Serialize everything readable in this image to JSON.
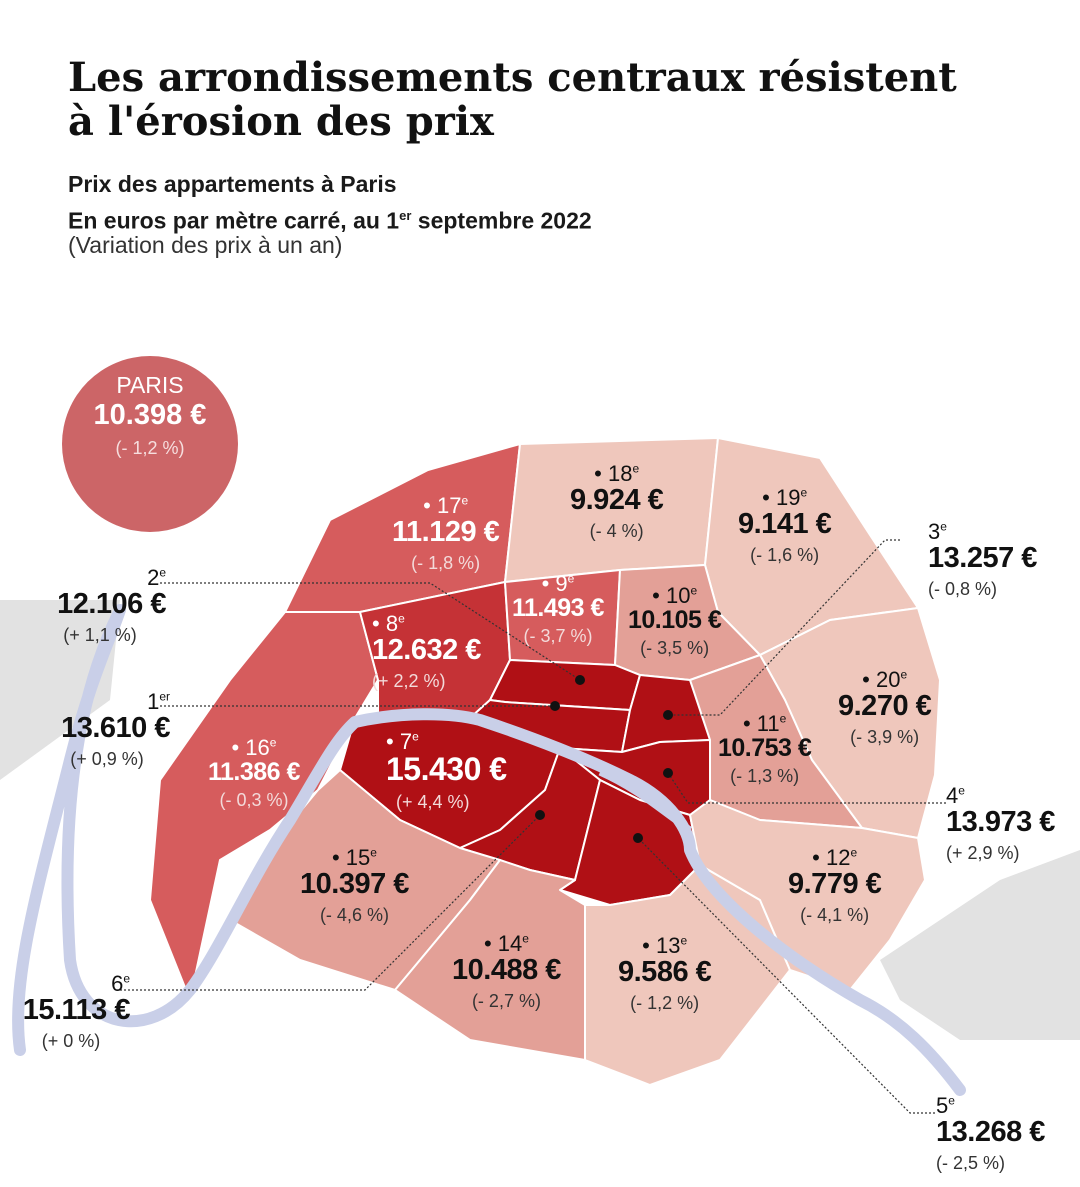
{
  "title_line1": "Les arrondissements centraux résistent",
  "title_line2": "à l'érosion des prix",
  "subtitle_line1": "Prix des appartements à Paris",
  "subtitle_line2_a": "En euros par mètre carré, au 1",
  "subtitle_line2_sup": "er",
  "subtitle_line2_b": " septembre 2022",
  "note": "(Variation des prix à un an)",
  "paris": {
    "name": "PARIS",
    "price": "10.398 €",
    "variation": "(- 1,2 %)"
  },
  "colors": {
    "very_high": "#b01015",
    "high": "#c53236",
    "mid": "#d65c5d",
    "low_mid": "#e3a097",
    "low": "#efc7bc",
    "seine": "#c9cfe8",
    "land_outside": "#e2e2e2"
  },
  "arrondissements": {
    "a1": {
      "num": "1",
      "sup": "er",
      "price": "13.610 €",
      "variation": "(+ 0,9 %)"
    },
    "a2": {
      "num": "2",
      "sup": "e",
      "price": "12.106 €",
      "variation": "(+ 1,1 %)"
    },
    "a3": {
      "num": "3",
      "sup": "e",
      "price": "13.257 €",
      "variation": "(- 0,8 %)"
    },
    "a4": {
      "num": "4",
      "sup": "e",
      "price": "13.973 €",
      "variation": "(+ 2,9 %)"
    },
    "a5": {
      "num": "5",
      "sup": "e",
      "price": "13.268 €",
      "variation": "(- 2,5 %)"
    },
    "a6": {
      "num": "6",
      "sup": "e",
      "price": "15.113 €",
      "variation": "(+ 0 %)"
    },
    "a7": {
      "num": "• 7",
      "sup": "e",
      "price": "15.430 €",
      "variation": "(+ 4,4 %)"
    },
    "a8": {
      "num": "• 8",
      "sup": "e",
      "price": "12.632 €",
      "variation": "(+ 2,2 %)"
    },
    "a9": {
      "num": "• 9",
      "sup": "e",
      "price": "11.493 €",
      "variation": "(- 3,7 %)"
    },
    "a10": {
      "num": "• 10",
      "sup": "e",
      "price": "10.105 €",
      "variation": "(- 3,5 %)"
    },
    "a11": {
      "num": "• 11",
      "sup": "e",
      "price": "10.753 €",
      "variation": "(- 1,3 %)"
    },
    "a12": {
      "num": "• 12",
      "sup": "e",
      "price": "9.779 €",
      "variation": "(- 4,1 %)"
    },
    "a13": {
      "num": "• 13",
      "sup": "e",
      "price": "9.586 €",
      "variation": "(- 1,2 %)"
    },
    "a14": {
      "num": "• 14",
      "sup": "e",
      "price": "10.488 €",
      "variation": "(- 2,7 %)"
    },
    "a15": {
      "num": "• 15",
      "sup": "e",
      "price": "10.397 €",
      "variation": "(- 4,6 %)"
    },
    "a16": {
      "num": "• 16",
      "sup": "e",
      "price": "11.386 €",
      "variation": "(- 0,3 %)"
    },
    "a17": {
      "num": "• 17",
      "sup": "e",
      "price": "11.129 €",
      "variation": "(- 1,8 %)"
    },
    "a18": {
      "num": "• 18",
      "sup": "e",
      "price": "9.924 €",
      "variation": "(- 4 %)"
    },
    "a19": {
      "num": "• 19",
      "sup": "e",
      "price": "9.141 €",
      "variation": "(- 1,6 %)"
    },
    "a20": {
      "num": "• 20",
      "sup": "e",
      "price": "9.270 €",
      "variation": "(- 3,9 %)"
    }
  }
}
